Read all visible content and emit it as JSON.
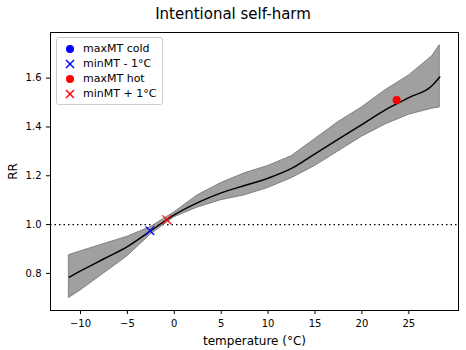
{
  "chart_data": {
    "type": "line",
    "title": "Intentional self-harm",
    "x_label": "temperature (°C)",
    "y_label": "RR",
    "xlim": [
      -13.2,
      30.3
    ],
    "ylim": [
      0.648,
      1.787
    ],
    "xticks": [
      {
        "value": -10,
        "label": "−10"
      },
      {
        "value": -5,
        "label": "−5"
      },
      0,
      5,
      10,
      15,
      20,
      25
    ],
    "yticks": [
      0.8,
      {
        "value": 1,
        "label": "1.0"
      },
      1.2,
      1.4,
      1.6
    ],
    "legend": "upper left",
    "reference_line": {
      "y": 1,
      "color": "black",
      "line_style": "dotted"
    },
    "series": [
      {
        "type": "area",
        "color": "grey",
        "x": [
          -11.2,
          -10,
          -7.5,
          -5,
          -2.5,
          0,
          2.5,
          5,
          7.5,
          10,
          12.5,
          15,
          17.5,
          20,
          22.5,
          25,
          27.5,
          28.3
        ],
        "lower": [
          0.7,
          0.73,
          0.8,
          0.87,
          0.96,
          1.03,
          1.07,
          1.1,
          1.12,
          1.15,
          1.19,
          1.24,
          1.3,
          1.36,
          1.41,
          1.45,
          1.475,
          1.48
        ],
        "upper": [
          0.875,
          0.89,
          0.92,
          0.95,
          0.99,
          1.05,
          1.12,
          1.17,
          1.21,
          1.24,
          1.28,
          1.35,
          1.42,
          1.48,
          1.55,
          1.61,
          1.69,
          1.735
        ]
      },
      {
        "type": "line",
        "color": "black",
        "x": [
          -11.2,
          -10,
          -7.5,
          -5,
          -2.5,
          0,
          2.5,
          5,
          7.5,
          10,
          12.5,
          15,
          17.5,
          20,
          22.5,
          25,
          27.5,
          28.3
        ],
        "values": [
          0.785,
          0.81,
          0.86,
          0.91,
          0.975,
          1.04,
          1.09,
          1.13,
          1.16,
          1.19,
          1.23,
          1.29,
          1.35,
          1.41,
          1.47,
          1.52,
          1.57,
          1.605
        ]
      },
      {
        "name": "maxMT cold",
        "type": "scatter",
        "color": "blue",
        "marker": "o",
        "x": [],
        "values": []
      },
      {
        "name": "minMT - 1°C",
        "type": "scatter",
        "color": "blue",
        "marker": "x",
        "x": [
          -2.6
        ],
        "values": [
          0.975
        ]
      },
      {
        "name": "maxMT hot",
        "type": "scatter",
        "color": "red",
        "marker": "o",
        "x": [
          23.7
        ],
        "values": [
          1.51
        ]
      },
      {
        "name": "minMT + 1°C",
        "type": "scatter",
        "color": "red",
        "marker": "x",
        "x": [
          -0.8
        ],
        "values": [
          1.02
        ]
      }
    ]
  }
}
